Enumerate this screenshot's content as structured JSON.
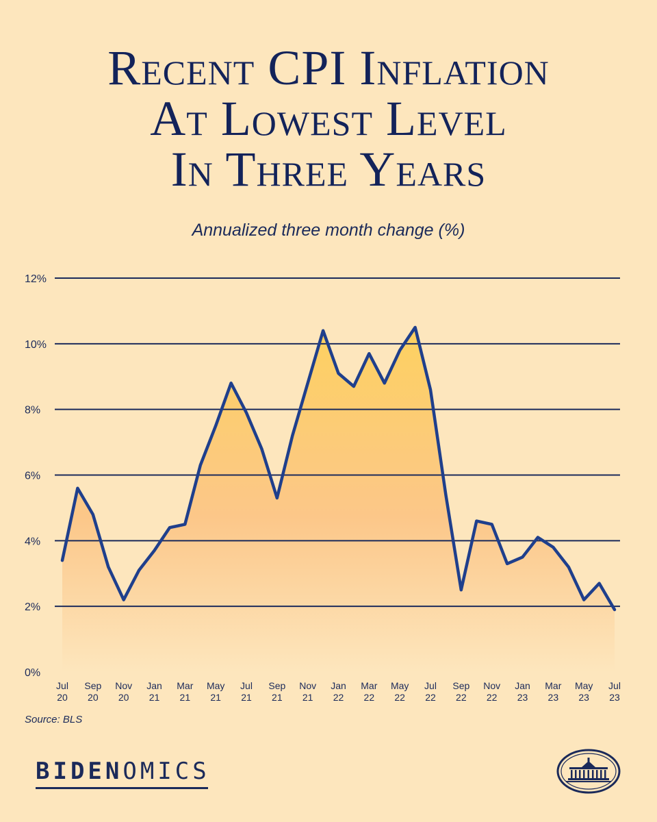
{
  "title_lines": [
    "Recent CPI Inflation",
    "At Lowest Level",
    "In Three Years"
  ],
  "subtitle": "Annualized three month change (%)",
  "source": "Source: BLS",
  "brand": {
    "strong": "BIDEN",
    "rest": "OMICS"
  },
  "colors": {
    "background": "#fde6bd",
    "line": "#1f3f8c",
    "fill_top": "#fdd160",
    "fill_bottom": "#fde6bd",
    "text": "#1b2a5a"
  },
  "chart_data": {
    "type": "area",
    "title": "Recent CPI Inflation At Lowest Level In Three Years",
    "ylabel": "Annualized three month change (%)",
    "ylim": [
      0,
      12
    ],
    "yticks": [
      0,
      2,
      4,
      6,
      8,
      10,
      12
    ],
    "ytick_labels": [
      "0%",
      "2%",
      "4%",
      "6%",
      "8%",
      "10%",
      "12%"
    ],
    "grid": true,
    "x_tick_labels": [
      [
        "Jul",
        "20"
      ],
      [
        "Sep",
        "20"
      ],
      [
        "Nov",
        "20"
      ],
      [
        "Jan",
        "21"
      ],
      [
        "Mar",
        "21"
      ],
      [
        "May",
        "21"
      ],
      [
        "Jul",
        "21"
      ],
      [
        "Sep",
        "21"
      ],
      [
        "Nov",
        "21"
      ],
      [
        "Jan",
        "22"
      ],
      [
        "Mar",
        "22"
      ],
      [
        "May",
        "22"
      ],
      [
        "Jul",
        "22"
      ],
      [
        "Sep",
        "22"
      ],
      [
        "Nov",
        "22"
      ],
      [
        "Jan",
        "23"
      ],
      [
        "Mar",
        "23"
      ],
      [
        "May",
        "23"
      ],
      [
        "Jul",
        "23"
      ]
    ],
    "months": [
      "Jul 20",
      "Aug 20",
      "Sep 20",
      "Oct 20",
      "Nov 20",
      "Dec 20",
      "Jan 21",
      "Feb 21",
      "Mar 21",
      "Apr 21",
      "May 21",
      "Jun 21",
      "Jul 21",
      "Aug 21",
      "Sep 21",
      "Oct 21",
      "Nov 21",
      "Dec 21",
      "Jan 22",
      "Feb 22",
      "Mar 22",
      "Apr 22",
      "May 22",
      "Jun 22",
      "Jul 22",
      "Aug 22",
      "Sep 22",
      "Oct 22",
      "Nov 22",
      "Dec 22",
      "Jan 23",
      "Feb 23",
      "Mar 23",
      "Apr 23",
      "May 23",
      "Jun 23",
      "Jul 23"
    ],
    "values": [
      3.4,
      5.6,
      4.8,
      3.2,
      2.2,
      3.1,
      3.7,
      4.4,
      4.5,
      6.3,
      7.5,
      8.8,
      7.9,
      6.8,
      5.3,
      7.2,
      8.8,
      10.4,
      9.1,
      8.7,
      9.7,
      8.8,
      9.8,
      10.5,
      8.6,
      5.4,
      2.5,
      4.6,
      4.5,
      3.3,
      3.5,
      4.1,
      3.8,
      3.2,
      2.2,
      2.7,
      1.9
    ]
  }
}
